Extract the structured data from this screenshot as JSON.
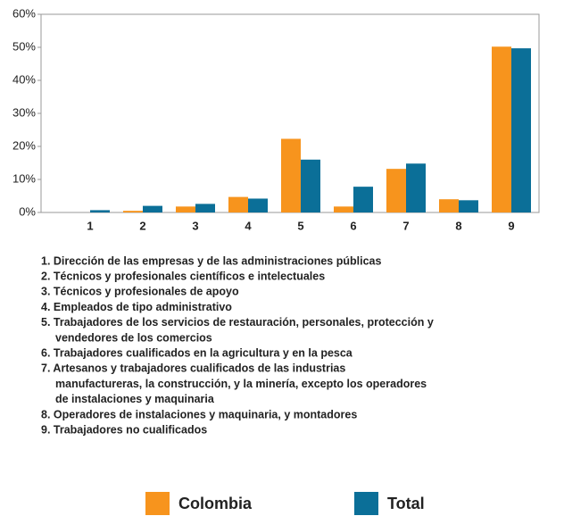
{
  "chart_data": {
    "type": "bar",
    "categories": [
      "1",
      "2",
      "3",
      "4",
      "5",
      "6",
      "7",
      "8",
      "9"
    ],
    "series": [
      {
        "name": "Colombia",
        "color": "#f7941d",
        "values": [
          0,
          0.5,
          1.8,
          4.7,
          22.3,
          1.8,
          13.2,
          4.0,
          50.2
        ]
      },
      {
        "name": "Total",
        "color": "#0b6f98",
        "values": [
          0.7,
          2.0,
          2.6,
          4.2,
          16.0,
          7.8,
          14.8,
          3.7,
          49.7
        ]
      }
    ],
    "ylim": [
      0,
      60
    ],
    "yticks": [
      {
        "value": 0,
        "label": "0%"
      },
      {
        "value": 10,
        "label": "10%"
      },
      {
        "value": 20,
        "label": "20%"
      },
      {
        "value": 30,
        "label": "30%"
      },
      {
        "value": 40,
        "label": "40%"
      },
      {
        "value": 50,
        "label": "50%"
      },
      {
        "value": 60,
        "label": "60%"
      }
    ],
    "grid": false,
    "legend": "bottom",
    "notes": [
      [
        "1. Dirección de las empresas y de las administraciones públicas"
      ],
      [
        "2. Técnicos y profesionales científicos e intelectuales"
      ],
      [
        "3. Técnicos y profesionales de apoyo"
      ],
      [
        "4. Empleados de tipo administrativo"
      ],
      [
        "5. Trabajadores de los servicios de restauración, personales, protección y",
        "vendedores de los comercios"
      ],
      [
        "6. Trabajadores cualificados en la agricultura y en la pesca"
      ],
      [
        "7. Artesanos y trabajadores cualificados de las industrias",
        "manufactureras, la construcción, y la minería, excepto los operadores",
        "de instalaciones y maquinaria"
      ],
      [
        "8. Operadores de instalaciones y maquinaria, y montadores"
      ],
      [
        "9. Trabajadores no cualificados"
      ]
    ]
  }
}
